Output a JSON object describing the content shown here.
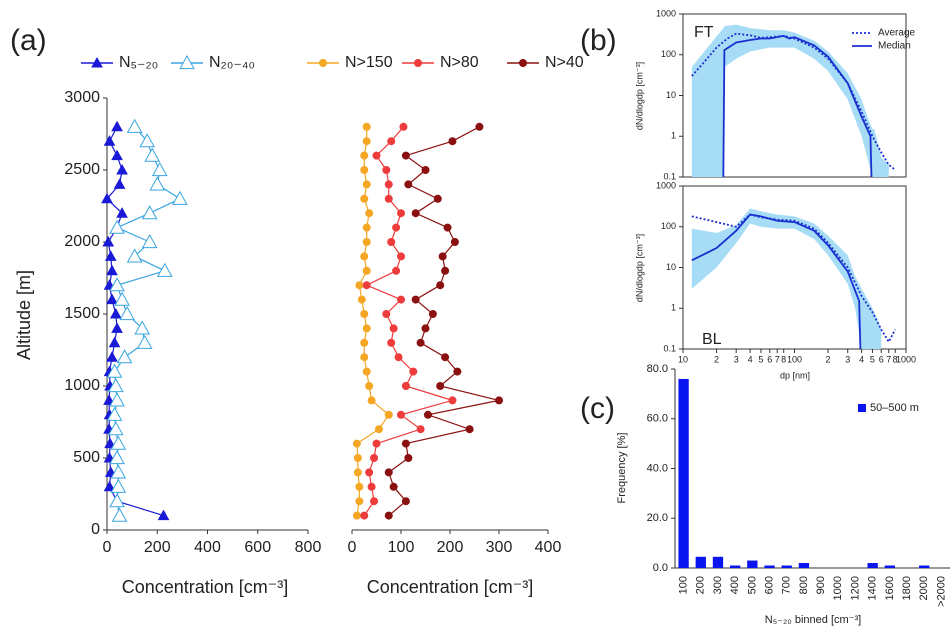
{
  "chart_data": [
    {
      "type": "line",
      "panel_label": "(a)",
      "xlabel": "Concentration [cm⁻³]",
      "ylabel": "Altitude [m]",
      "y": [
        100,
        200,
        300,
        400,
        500,
        600,
        700,
        800,
        900,
        1000,
        1100,
        1200,
        1300,
        1400,
        1500,
        1600,
        1700,
        1800,
        1900,
        2000,
        2100,
        2200,
        2300,
        2400,
        2500,
        2600,
        2700,
        2800
      ],
      "xlim": [
        0,
        800
      ],
      "xticks": [
        0,
        200,
        400,
        600,
        800
      ],
      "ylim": [
        0,
        3000
      ],
      "yticks": [
        0,
        500,
        1000,
        1500,
        2000,
        2500,
        3000
      ],
      "series": [
        {
          "name": "N₅₋₂₀",
          "color": "#1a1ad6",
          "marker": "triangle",
          "values": [
            225,
            40,
            10,
            15,
            10,
            12,
            8,
            10,
            8,
            12,
            10,
            20,
            30,
            40,
            35,
            20,
            10,
            20,
            15,
            5,
            40,
            60,
            0,
            50,
            60,
            40,
            10,
            40
          ]
        },
        {
          "name": "N₂₀₋₄₀",
          "color": "#3aa6e0",
          "marker": "triangle-open",
          "values": [
            50,
            40,
            45,
            45,
            40,
            45,
            35,
            30,
            40,
            35,
            30,
            70,
            150,
            140,
            80,
            60,
            40,
            230,
            110,
            170,
            40,
            170,
            290,
            200,
            210,
            180,
            160,
            110
          ]
        }
      ]
    },
    {
      "type": "line",
      "xlabel": "Concentration [cm⁻³]",
      "y": [
        100,
        200,
        300,
        400,
        500,
        600,
        700,
        800,
        900,
        1000,
        1100,
        1200,
        1300,
        1400,
        1500,
        1600,
        1700,
        1800,
        1900,
        2000,
        2100,
        2200,
        2300,
        2400,
        2500,
        2600,
        2700,
        2800
      ],
      "xlim": [
        0,
        400
      ],
      "xticks": [
        0,
        100,
        200,
        300,
        400
      ],
      "ylim": [
        0,
        3000
      ],
      "series": [
        {
          "name": "N>150",
          "color": "#f5a623",
          "marker": "circle",
          "values": [
            10,
            15,
            15,
            12,
            12,
            10,
            55,
            75,
            40,
            35,
            30,
            25,
            25,
            30,
            25,
            20,
            15,
            30,
            25,
            30,
            30,
            35,
            25,
            30,
            25,
            25,
            30,
            30
          ]
        },
        {
          "name": "N>80",
          "color": "#ee3b3b",
          "marker": "circle",
          "values": [
            25,
            45,
            40,
            35,
            45,
            50,
            140,
            100,
            205,
            110,
            125,
            95,
            80,
            85,
            70,
            100,
            30,
            90,
            100,
            80,
            90,
            100,
            75,
            75,
            70,
            50,
            80,
            105
          ]
        },
        {
          "name": "N>40",
          "color": "#8b1010",
          "marker": "circle",
          "values": [
            75,
            110,
            85,
            75,
            115,
            110,
            240,
            155,
            300,
            180,
            215,
            190,
            140,
            150,
            165,
            130,
            180,
            190,
            185,
            210,
            195,
            130,
            175,
            115,
            150,
            110,
            205,
            260
          ]
        }
      ]
    },
    {
      "type": "line",
      "panel_label": "(b)",
      "annotation": "FT",
      "ylabel": "dN/dlogdp [cm⁻³]",
      "log_x": true,
      "log_y": true,
      "xlim": [
        10,
        1000
      ],
      "ylim": [
        0.1,
        1000
      ],
      "yticks": [
        0.1,
        1,
        10,
        100,
        1000
      ],
      "band": {
        "color": "#a6dcf5",
        "x": [
          12,
          23,
          23.5,
          30,
          40,
          60,
          80,
          100,
          150,
          200,
          300,
          400,
          450,
          500,
          520,
          600,
          700
        ],
        "lower": [
          0.1,
          0.1,
          50,
          80,
          120,
          150,
          150,
          150,
          80,
          40,
          8,
          1,
          0.3,
          0.1,
          0.1,
          0.1,
          0.1
        ],
        "upper": [
          50,
          450,
          500,
          550,
          450,
          400,
          400,
          350,
          220,
          120,
          35,
          8,
          3,
          1.5,
          1.5,
          0.3,
          0.2
        ]
      },
      "series": [
        {
          "name": "Average",
          "color": "#1a2fd0",
          "dash": "dotted",
          "x": [
            12,
            15,
            20,
            25,
            30,
            40,
            50,
            60,
            80,
            100,
            150,
            200,
            300,
            400,
            500,
            600,
            700,
            800
          ],
          "values": [
            30,
            60,
            150,
            250,
            330,
            300,
            260,
            270,
            290,
            250,
            150,
            80,
            20,
            4,
            1,
            0.4,
            0.2,
            0.15
          ]
        },
        {
          "name": "Median",
          "color": "#1a2fd0",
          "x": [
            23,
            23.5,
            30,
            40,
            50,
            60,
            80,
            90,
            100,
            150,
            200,
            300,
            400,
            480,
            490
          ],
          "values": [
            0.1,
            130,
            200,
            230,
            250,
            250,
            290,
            250,
            270,
            170,
            90,
            20,
            3,
            1,
            0.1
          ]
        }
      ]
    },
    {
      "type": "line",
      "annotation": "BL",
      "ylabel": "dN/dlogdp [cm⁻³]",
      "xlabel": "dp [nm]",
      "log_x": true,
      "log_y": true,
      "xlim": [
        10,
        1000
      ],
      "ylim": [
        0.1,
        1000
      ],
      "yticks": [
        0.1,
        1,
        10,
        100,
        1000
      ],
      "xticks": [
        10,
        {
          "value": 20,
          "label": "2"
        },
        {
          "value": 30,
          "label": "3"
        },
        {
          "value": 40,
          "label": "4"
        },
        {
          "value": 50,
          "label": "5"
        },
        {
          "value": 60,
          "label": "6"
        },
        {
          "value": 70,
          "label": "7"
        },
        {
          "value": 80,
          "label": "8"
        },
        100,
        {
          "value": 200,
          "label": "2"
        },
        {
          "value": 300,
          "label": "3"
        },
        {
          "value": 400,
          "label": "4"
        },
        {
          "value": 500,
          "label": "5"
        },
        {
          "value": 600,
          "label": "6"
        },
        {
          "value": 700,
          "label": "7"
        },
        {
          "value": 800,
          "label": "8"
        },
        1000
      ],
      "band": {
        "color": "#a6dcf5",
        "x": [
          12,
          20,
          30,
          40,
          50,
          70,
          100,
          150,
          200,
          300,
          350,
          400,
          500,
          560,
          600
        ],
        "lower": [
          3,
          10,
          40,
          120,
          100,
          90,
          90,
          50,
          20,
          4,
          1,
          0.1,
          0.1,
          0.1,
          0.1
        ],
        "upper": [
          90,
          70,
          110,
          280,
          240,
          200,
          180,
          120,
          60,
          20,
          6,
          3,
          1,
          0.5,
          0.3
        ]
      },
      "series": [
        {
          "name": "Average",
          "color": "#1a2fd0",
          "dash": "dotted",
          "x": [
            12,
            20,
            30,
            40,
            50,
            70,
            100,
            150,
            200,
            300,
            400,
            500,
            600,
            700,
            800
          ],
          "values": [
            180,
            130,
            100,
            200,
            170,
            150,
            140,
            90,
            40,
            10,
            2,
            0.8,
            0.3,
            0.15,
            0.3
          ]
        },
        {
          "name": "Median",
          "color": "#1a2fd0",
          "x": [
            12,
            20,
            30,
            40,
            50,
            70,
            100,
            150,
            200,
            300,
            380,
            390
          ],
          "values": [
            15,
            30,
            80,
            200,
            180,
            140,
            130,
            80,
            35,
            8,
            1.5,
            0.1
          ]
        }
      ]
    },
    {
      "type": "bar",
      "panel_label": "(c)",
      "xlabel": "N₅₋₂₀ binned [cm⁻³]",
      "ylabel": "Frequency [%]",
      "categories": [
        "100",
        "200",
        "300",
        "400",
        "500",
        "600",
        "700",
        "800",
        "900",
        "1000",
        "1200",
        "1400",
        "1600",
        "1800",
        "2000",
        ">2000"
      ],
      "ylim": [
        0,
        80
      ],
      "yticks": [
        {
          "value": 0,
          "label": "0.0"
        },
        {
          "value": 20,
          "label": "20.0"
        },
        {
          "value": 40,
          "label": "40.0"
        },
        {
          "value": 60,
          "label": "60.0"
        },
        {
          "value": 80,
          "label": "80.0"
        }
      ],
      "series": [
        {
          "name": "50–500 m",
          "color": "#0a14f0",
          "values": [
            76,
            4.5,
            4.5,
            1,
            3,
            1,
            1,
            2,
            0,
            0,
            0,
            2,
            1,
            0,
            1,
            0
          ]
        }
      ]
    }
  ]
}
